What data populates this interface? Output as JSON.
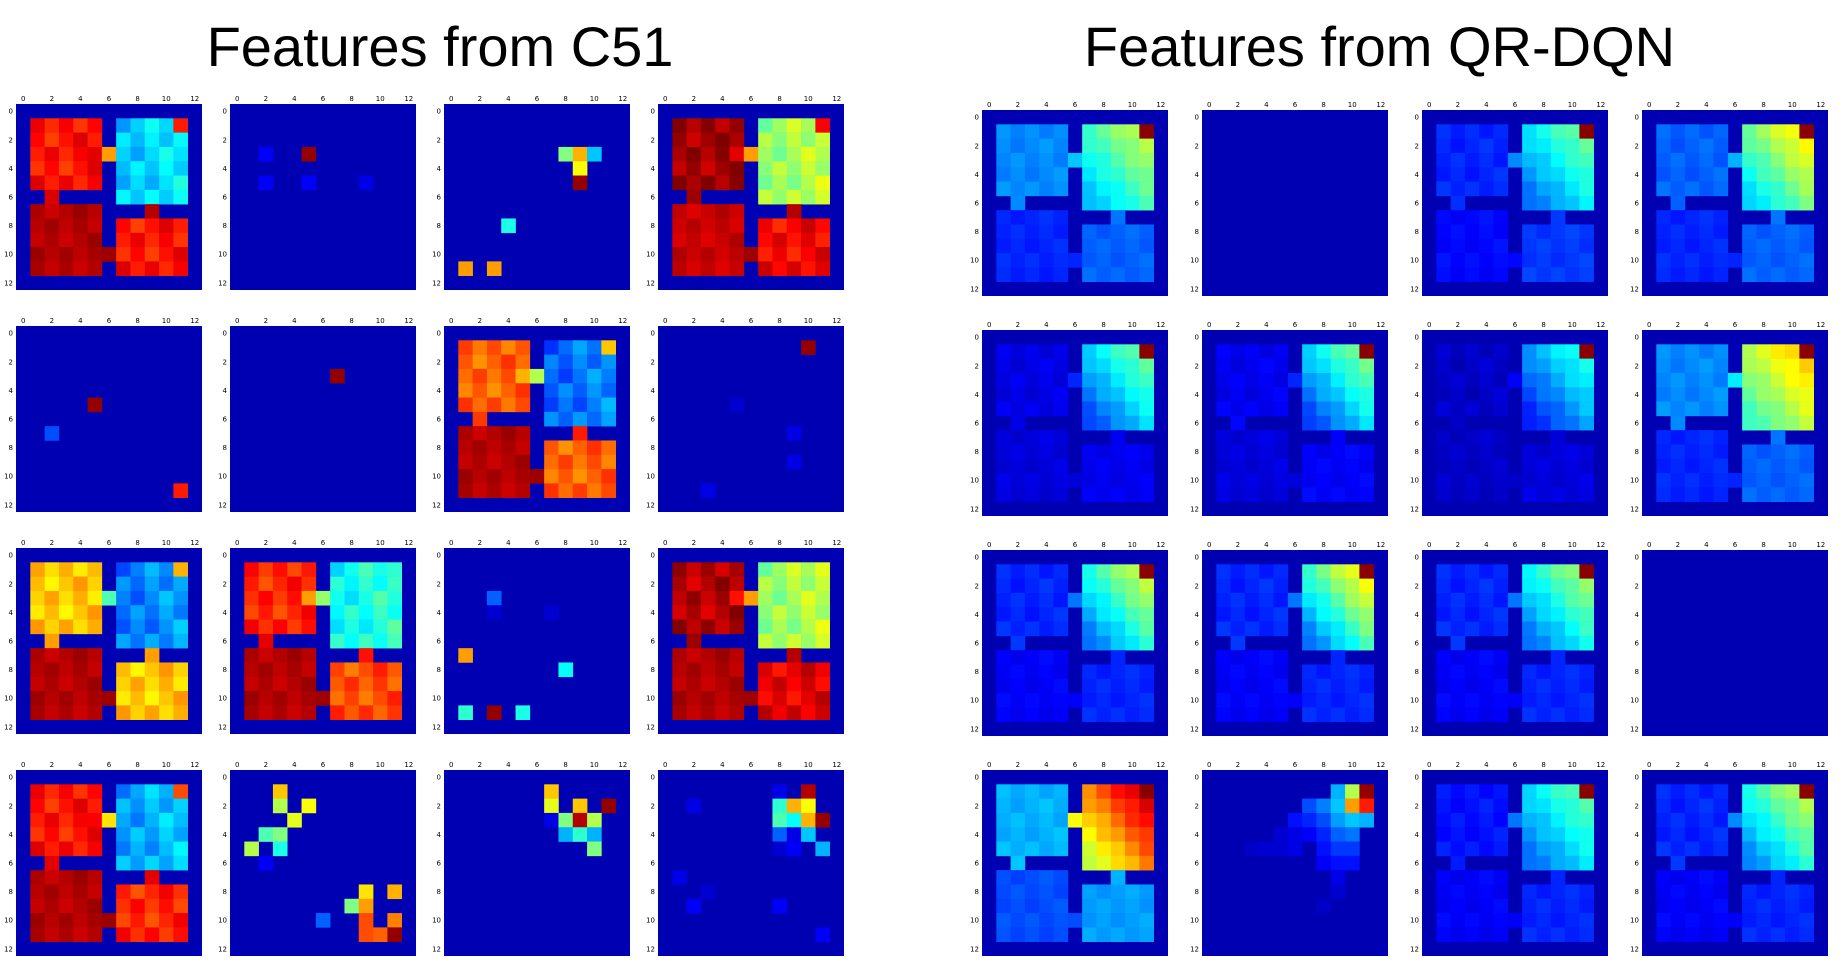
{
  "chart_data": [
    {
      "type": "heatmap",
      "title": "Features from C51",
      "xticks": [
        "0",
        "2",
        "4",
        "6",
        "8",
        "10",
        "12"
      ],
      "yticks": [
        "0",
        "2",
        "4",
        "6",
        "8",
        "10",
        "12"
      ],
      "colormap": "jet",
      "grid": "4x4 panels of 13x13 feature maps",
      "panels": [
        {
          "row": 0,
          "col": 0,
          "pattern": "rooms",
          "values": {
            "A": 0.86,
            "B": 0.36,
            "C": 0.95,
            "D": 0.86,
            "cA": 0.91,
            "cB": 0.72,
            "cC": 0.97,
            "cD": 0.95,
            "gB": 0.85,
            "gA": 0.9
          }
        },
        {
          "row": 0,
          "col": 1,
          "pattern": "sparse",
          "cells": [
            [
              3,
              2,
              0.12
            ],
            [
              3,
              5,
              0.98
            ],
            [
              5,
              2,
              0.12
            ],
            [
              5,
              5,
              0.12
            ],
            [
              5,
              9,
              0.1
            ]
          ]
        },
        {
          "row": 0,
          "col": 2,
          "pattern": "sparse",
          "cells": [
            [
              3,
              8,
              0.5
            ],
            [
              3,
              9,
              0.7
            ],
            [
              3,
              10,
              0.32
            ],
            [
              4,
              9,
              0.62
            ],
            [
              5,
              9,
              0.98
            ],
            [
              8,
              4,
              0.4
            ],
            [
              11,
              1,
              0.72
            ],
            [
              11,
              3,
              0.72
            ]
          ]
        },
        {
          "row": 0,
          "col": 3,
          "pattern": "rooms",
          "values": {
            "A": 0.97,
            "B": 0.56,
            "C": 0.93,
            "D": 0.88,
            "cA": 0.97,
            "cB": 0.72,
            "cC": 0.97,
            "cD": 0.95,
            "gB": 0.88,
            "gA": 0.9
          }
        },
        {
          "row": 1,
          "col": 0,
          "pattern": "sparse",
          "cells": [
            [
              5,
              5,
              0.98
            ],
            [
              7,
              2,
              0.2
            ],
            [
              11,
              11,
              0.85
            ]
          ]
        },
        {
          "row": 1,
          "col": 1,
          "pattern": "sparse",
          "cells": [
            [
              3,
              7,
              0.98
            ]
          ]
        },
        {
          "row": 1,
          "col": 2,
          "pattern": "rooms",
          "values": {
            "A": 0.78,
            "B": 0.26,
            "C": 0.95,
            "D": 0.78,
            "cA": 0.82,
            "cB": 0.55,
            "cC": 0.97,
            "cD": 0.85,
            "gB": 0.68,
            "gA": 0.7
          }
        },
        {
          "row": 1,
          "col": 3,
          "pattern": "sparse",
          "cells": [
            [
              1,
              10,
              0.98
            ],
            [
              5,
              5,
              0.08
            ],
            [
              7,
              9,
              0.1
            ],
            [
              9,
              9,
              0.1
            ],
            [
              11,
              3,
              0.1
            ]
          ]
        },
        {
          "row": 2,
          "col": 0,
          "pattern": "rooms",
          "values": {
            "A": 0.68,
            "B": 0.28,
            "C": 0.95,
            "D": 0.68,
            "cA": 0.72,
            "cB": 0.45,
            "cC": 0.97,
            "cD": 0.72,
            "gB": 0.7,
            "gA": 0.64
          }
        },
        {
          "row": 2,
          "col": 1,
          "pattern": "rooms",
          "values": {
            "A": 0.84,
            "B": 0.42,
            "C": 0.95,
            "D": 0.8,
            "cA": 0.9,
            "cB": 0.52,
            "cC": 0.97,
            "cD": 0.86,
            "gB": 0.42,
            "gA": 0.72
          }
        },
        {
          "row": 2,
          "col": 2,
          "pattern": "sparse",
          "cells": [
            [
              3,
              3,
              0.22
            ],
            [
              4,
              3,
              0.08
            ],
            [
              4,
              7,
              0.08
            ],
            [
              7,
              1,
              0.72
            ],
            [
              8,
              8,
              0.38
            ],
            [
              11,
              1,
              0.42
            ],
            [
              11,
              3,
              0.98
            ],
            [
              11,
              5,
              0.4
            ]
          ]
        },
        {
          "row": 2,
          "col": 3,
          "pattern": "rooms",
          "values": {
            "A": 0.95,
            "B": 0.56,
            "C": 0.95,
            "D": 0.9,
            "cA": 0.97,
            "cB": 0.72,
            "cC": 0.97,
            "cD": 0.95,
            "gB": 0.6,
            "gA": 0.86
          }
        },
        {
          "row": 3,
          "col": 0,
          "pattern": "rooms",
          "values": {
            "A": 0.86,
            "B": 0.32,
            "C": 0.95,
            "D": 0.84,
            "cA": 0.9,
            "cB": 0.65,
            "cC": 0.97,
            "cD": 0.9,
            "gB": 0.8,
            "gA": 0.88
          }
        },
        {
          "row": 3,
          "col": 1,
          "pattern": "sparse",
          "cells": [
            [
              1,
              3,
              0.68
            ],
            [
              2,
              3,
              0.55
            ],
            [
              2,
              5,
              0.62
            ],
            [
              3,
              4,
              0.6
            ],
            [
              4,
              2,
              0.45
            ],
            [
              4,
              3,
              0.5
            ],
            [
              5,
              1,
              0.55
            ],
            [
              5,
              3,
              0.4
            ],
            [
              6,
              2,
              0.12
            ],
            [
              8,
              9,
              0.65
            ],
            [
              8,
              11,
              0.7
            ],
            [
              9,
              8,
              0.5
            ],
            [
              9,
              9,
              0.72
            ],
            [
              10,
              6,
              0.22
            ],
            [
              10,
              9,
              0.8
            ],
            [
              10,
              11,
              0.75
            ],
            [
              11,
              9,
              0.8
            ],
            [
              11,
              10,
              0.78
            ],
            [
              11,
              11,
              0.98
            ]
          ]
        },
        {
          "row": 3,
          "col": 2,
          "pattern": "sparse",
          "cells": [
            [
              1,
              7,
              0.68
            ],
            [
              2,
              7,
              0.6
            ],
            [
              2,
              9,
              0.68
            ],
            [
              2,
              11,
              0.98
            ],
            [
              3,
              7,
              0.1
            ],
            [
              3,
              8,
              0.5
            ],
            [
              3,
              9,
              0.95
            ],
            [
              3,
              10,
              0.55
            ],
            [
              4,
              8,
              0.3
            ],
            [
              4,
              9,
              0.42
            ],
            [
              4,
              10,
              0.3
            ],
            [
              5,
              10,
              0.5
            ]
          ]
        },
        {
          "row": 3,
          "col": 3,
          "pattern": "sparse",
          "cells": [
            [
              1,
              8,
              0.1
            ],
            [
              1,
              10,
              0.95
            ],
            [
              2,
              2,
              0.1
            ],
            [
              2,
              8,
              0.42
            ],
            [
              2,
              9,
              0.7
            ],
            [
              2,
              10,
              0.62
            ],
            [
              3,
              8,
              0.45
            ],
            [
              3,
              9,
              0.38
            ],
            [
              3,
              10,
              0.7
            ],
            [
              3,
              11,
              0.98
            ],
            [
              4,
              8,
              0.22
            ],
            [
              4,
              9,
              0.1
            ],
            [
              4,
              10,
              0.32
            ],
            [
              5,
              8,
              0.08
            ],
            [
              5,
              9,
              0.12
            ],
            [
              5,
              11,
              0.3
            ],
            [
              7,
              1,
              0.1
            ],
            [
              8,
              3,
              0.08
            ],
            [
              9,
              2,
              0.12
            ],
            [
              9,
              8,
              0.12
            ],
            [
              11,
              11,
              0.12
            ]
          ]
        }
      ]
    },
    {
      "type": "heatmap",
      "title": "Features from QR-DQN",
      "xticks": [
        "0",
        "2",
        "4",
        "6",
        "8",
        "10",
        "12"
      ],
      "yticks": [
        "0",
        "2",
        "4",
        "6",
        "8",
        "10",
        "12"
      ],
      "colormap": "jet",
      "grid": "4x4 panels of 13x13 feature maps",
      "panels": [
        {
          "row": 0,
          "col": 0,
          "pattern": "value",
          "values": {
            "A": 0.26,
            "C": 0.16,
            "D": 0.22,
            "bMin": 0.3,
            "bMax": 0.58,
            "goal": 0.99,
            "cA": 0.26,
            "cB": 0.32,
            "cC": 0.16,
            "cD": 0.24
          }
        },
        {
          "row": 0,
          "col": 1,
          "pattern": "empty"
        },
        {
          "row": 0,
          "col": 2,
          "pattern": "value",
          "values": {
            "A": 0.16,
            "C": 0.13,
            "D": 0.18,
            "bMin": 0.22,
            "bMax": 0.5,
            "goal": 0.99,
            "cA": 0.17,
            "cB": 0.26,
            "cC": 0.13,
            "cD": 0.18
          }
        },
        {
          "row": 0,
          "col": 3,
          "pattern": "value",
          "values": {
            "A": 0.22,
            "C": 0.16,
            "D": 0.22,
            "bMin": 0.32,
            "bMax": 0.66,
            "goal": 0.99,
            "cA": 0.22,
            "cB": 0.3,
            "cC": 0.16,
            "cD": 0.24
          }
        },
        {
          "row": 1,
          "col": 0,
          "pattern": "value",
          "values": {
            "A": 0.1,
            "C": 0.09,
            "D": 0.11,
            "bMin": 0.18,
            "bMax": 0.5,
            "goal": 0.99,
            "cA": 0.1,
            "cB": 0.16,
            "cC": 0.09,
            "cD": 0.11
          }
        },
        {
          "row": 1,
          "col": 1,
          "pattern": "value",
          "values": {
            "A": 0.11,
            "C": 0.09,
            "D": 0.12,
            "bMin": 0.17,
            "bMax": 0.52,
            "goal": 0.99,
            "cA": 0.13,
            "cB": 0.16,
            "cC": 0.09,
            "cD": 0.12
          }
        },
        {
          "row": 1,
          "col": 2,
          "pattern": "value",
          "values": {
            "A": 0.07,
            "C": 0.07,
            "D": 0.09,
            "bMin": 0.14,
            "bMax": 0.42,
            "goal": 0.99,
            "cA": 0.07,
            "cB": 0.12,
            "cC": 0.07,
            "cD": 0.09
          }
        },
        {
          "row": 1,
          "col": 3,
          "pattern": "value",
          "values": {
            "A": 0.26,
            "C": 0.16,
            "D": 0.22,
            "bMin": 0.42,
            "bMax": 0.7,
            "goal": 0.99,
            "cA": 0.26,
            "cB": 0.36,
            "cC": 0.16,
            "cD": 0.24
          }
        },
        {
          "row": 2,
          "col": 0,
          "pattern": "value",
          "values": {
            "A": 0.16,
            "C": 0.12,
            "D": 0.16,
            "bMin": 0.22,
            "bMax": 0.6,
            "goal": 0.99,
            "cA": 0.18,
            "cB": 0.24,
            "cC": 0.12,
            "cD": 0.16
          }
        },
        {
          "row": 2,
          "col": 1,
          "pattern": "value",
          "values": {
            "A": 0.16,
            "C": 0.12,
            "D": 0.16,
            "bMin": 0.22,
            "bMax": 0.66,
            "goal": 0.99,
            "cA": 0.18,
            "cB": 0.24,
            "cC": 0.12,
            "cD": 0.16
          }
        },
        {
          "row": 2,
          "col": 2,
          "pattern": "value",
          "values": {
            "A": 0.16,
            "C": 0.12,
            "D": 0.16,
            "bMin": 0.22,
            "bMax": 0.55,
            "goal": 0.99,
            "cA": 0.18,
            "cB": 0.24,
            "cC": 0.12,
            "cD": 0.16
          }
        },
        {
          "row": 2,
          "col": 3,
          "pattern": "empty"
        },
        {
          "row": 3,
          "col": 0,
          "pattern": "value",
          "values": {
            "A": 0.3,
            "C": 0.2,
            "D": 0.28,
            "bMin": 0.55,
            "bMax": 0.95,
            "goal": 0.99,
            "cA": 0.32,
            "cB": 0.62,
            "cC": 0.2,
            "cD": 0.3
          }
        },
        {
          "row": 3,
          "col": 1,
          "pattern": "sparse-value",
          "cells": [
            [
              1,
              9,
              0.3
            ],
            [
              1,
              10,
              0.55
            ],
            [
              1,
              11,
              0.98
            ],
            [
              2,
              7,
              0.2
            ],
            [
              2,
              8,
              0.25
            ],
            [
              2,
              9,
              0.32
            ],
            [
              2,
              10,
              0.72
            ],
            [
              2,
              11,
              0.85
            ],
            [
              3,
              6,
              0.14
            ],
            [
              3,
              7,
              0.16
            ],
            [
              3,
              8,
              0.2
            ],
            [
              3,
              9,
              0.28
            ],
            [
              3,
              10,
              0.32
            ],
            [
              3,
              11,
              0.3
            ],
            [
              4,
              5,
              0.08
            ],
            [
              4,
              6,
              0.1
            ],
            [
              4,
              7,
              0.12
            ],
            [
              4,
              8,
              0.16
            ],
            [
              4,
              9,
              0.22
            ],
            [
              4,
              10,
              0.24
            ],
            [
              5,
              3,
              0.07
            ],
            [
              5,
              4,
              0.08
            ],
            [
              5,
              5,
              0.08
            ],
            [
              5,
              6,
              0.1
            ],
            [
              5,
              8,
              0.14
            ],
            [
              5,
              9,
              0.18
            ],
            [
              5,
              10,
              0.18
            ],
            [
              6,
              8,
              0.12
            ],
            [
              6,
              9,
              0.14
            ],
            [
              6,
              10,
              0.14
            ],
            [
              7,
              9,
              0.1
            ],
            [
              8,
              9,
              0.08
            ],
            [
              9,
              8,
              0.07
            ]
          ]
        },
        {
          "row": 3,
          "col": 2,
          "pattern": "value",
          "values": {
            "A": 0.14,
            "C": 0.12,
            "D": 0.16,
            "bMin": 0.22,
            "bMax": 0.48,
            "goal": 0.99,
            "cA": 0.15,
            "cB": 0.24,
            "cC": 0.12,
            "cD": 0.16
          }
        },
        {
          "row": 3,
          "col": 3,
          "pattern": "value",
          "values": {
            "A": 0.16,
            "C": 0.12,
            "D": 0.16,
            "bMin": 0.24,
            "bMax": 0.58,
            "goal": 0.99,
            "cA": 0.18,
            "cB": 0.26,
            "cC": 0.12,
            "cD": 0.16
          }
        }
      ]
    }
  ]
}
